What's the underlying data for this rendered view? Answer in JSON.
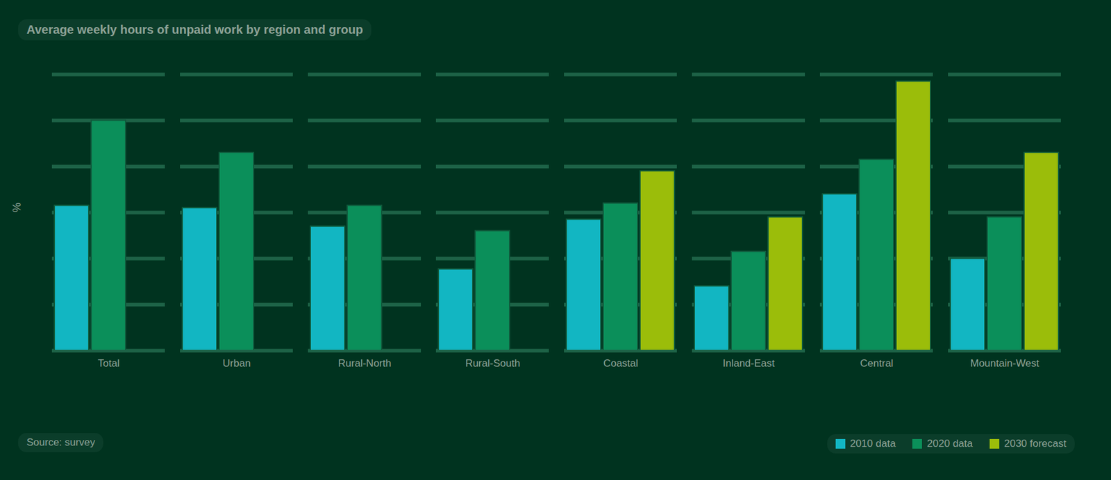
{
  "chart_data": {
    "type": "bar",
    "title": "Average weekly hours of unpaid work by region and group",
    "y_label": "%",
    "source": "Source: survey",
    "categories": [
      "Total",
      "Urban",
      "Rural-North",
      "Rural-South",
      "Coastal",
      "Inland-East",
      "Central",
      "Mountain-West"
    ],
    "series": [
      {
        "name": "2010 data",
        "color": "#12b6c2",
        "values": [
          31.5,
          31,
          27,
          17.7,
          28.5,
          14,
          34,
          20
        ]
      },
      {
        "name": "2020 data",
        "color": "#0b8f5a",
        "values": [
          50,
          43,
          31.5,
          26,
          32,
          21.5,
          41.5,
          29
        ]
      },
      {
        "name": "2030 forecast",
        "color": "#9bbd0a",
        "values": [
          null,
          null,
          null,
          null,
          39,
          29,
          58.5,
          43
        ]
      }
    ],
    "ylim": [
      0,
      60
    ],
    "yticks": [
      0,
      10,
      20,
      30,
      40,
      50,
      60
    ],
    "grid": true,
    "tick_labels": "x",
    "legend": "bottom-right"
  }
}
